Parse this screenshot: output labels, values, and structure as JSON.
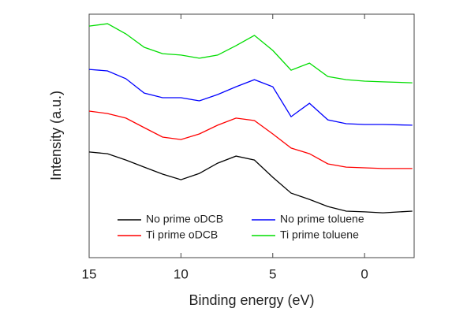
{
  "chart_data": {
    "type": "line",
    "x_label": "Binding energy (eV)",
    "y_label": "Intensity (a.u.)",
    "x": [
      15,
      14,
      13,
      12,
      11,
      10,
      9,
      8,
      7,
      6,
      5,
      4,
      3,
      2,
      1,
      0,
      -1,
      -2.6
    ],
    "xlim": [
      15,
      -2.7
    ],
    "xticks": [
      15,
      10,
      5,
      0
    ],
    "ylim": [
      0,
      100
    ],
    "legend": "lower center",
    "series": [
      {
        "name": "No prime oDCB",
        "color": "#000000",
        "values": [
          43.4,
          42.7,
          40.1,
          37.2,
          34.3,
          32.0,
          34.6,
          38.8,
          41.7,
          40.1,
          33.0,
          26.5,
          23.9,
          21.0,
          19.1,
          18.8,
          18.4,
          19.1
        ]
      },
      {
        "name": "No prime toluene",
        "color": "#0000ff",
        "values": [
          77.3,
          76.7,
          73.5,
          67.6,
          65.7,
          65.7,
          64.4,
          67.0,
          70.2,
          73.1,
          70.2,
          57.9,
          63.4,
          56.6,
          55.0,
          54.7,
          54.7,
          54.4
        ]
      },
      {
        "name": "Ti prime oDCB",
        "color": "#ff0000",
        "values": [
          60.2,
          59.2,
          57.3,
          53.4,
          49.5,
          48.5,
          50.8,
          54.4,
          57.3,
          56.3,
          50.8,
          45.0,
          42.7,
          38.5,
          37.2,
          36.9,
          36.6,
          36.6
        ]
      },
      {
        "name": "Ti prime toluene",
        "color": "#00dd00",
        "values": [
          95.1,
          96.1,
          91.9,
          86.4,
          83.8,
          83.2,
          81.9,
          83.2,
          87.1,
          91.3,
          85.1,
          77.0,
          79.9,
          74.4,
          73.1,
          72.5,
          72.2,
          71.8
        ]
      }
    ]
  }
}
